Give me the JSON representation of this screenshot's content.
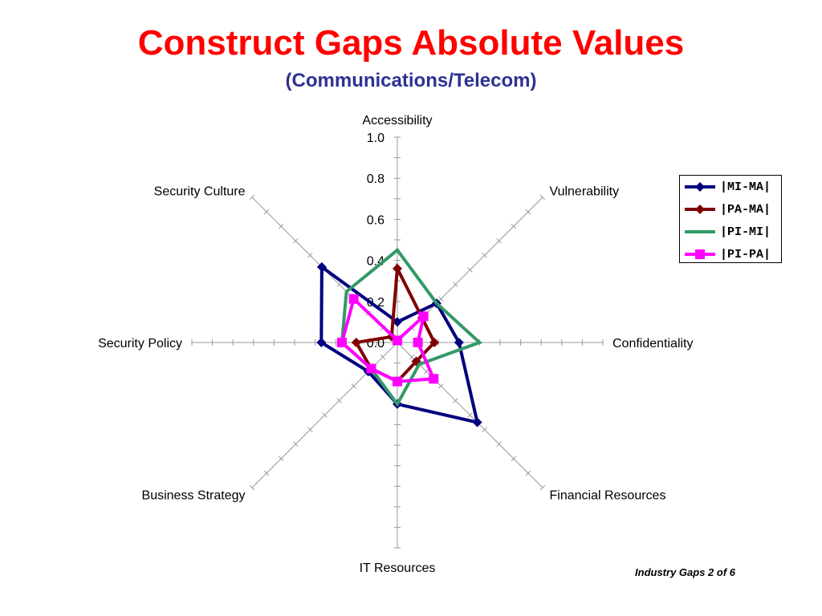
{
  "slide": {
    "title": "Construct Gaps Absolute Values",
    "subtitle": "(Communications/Telecom)",
    "footer": "Industry Gaps 2 of 6",
    "title_color": "#ff0000",
    "subtitle_color": "#2e3192"
  },
  "chart_data": {
    "type": "radar",
    "axes": [
      "Accessibility",
      "Vulnerability",
      "Confidentiality",
      "Financial Resources",
      "IT Resources",
      "Business Strategy",
      "Security Policy",
      "Security Culture"
    ],
    "tick_labels": [
      "0.0",
      "0.2",
      "0.4",
      "0.6",
      "0.8",
      "1.0"
    ],
    "rlim": [
      0,
      1.0
    ],
    "grid": false,
    "legend_position": "right",
    "series": [
      {
        "name": "|MI-MA|",
        "color": "#000080",
        "marker": "diamond",
        "values": [
          0.1,
          0.27,
          0.3,
          0.55,
          0.3,
          0.2,
          0.37,
          0.52
        ]
      },
      {
        "name": "|PA-MA|",
        "color": "#800000",
        "marker": "diamond",
        "values": [
          0.36,
          0.17,
          0.18,
          0.13,
          0.19,
          0.18,
          0.2,
          0.04
        ]
      },
      {
        "name": "|PI-MI|",
        "color": "#339966",
        "marker": "none",
        "values": [
          0.45,
          0.27,
          0.4,
          0.15,
          0.3,
          0.18,
          0.27,
          0.35
        ]
      },
      {
        "name": "|PI-PA|",
        "color": "#ff00ff",
        "marker": "square",
        "values": [
          0.01,
          0.18,
          0.1,
          0.25,
          0.19,
          0.18,
          0.27,
          0.3
        ]
      }
    ]
  }
}
